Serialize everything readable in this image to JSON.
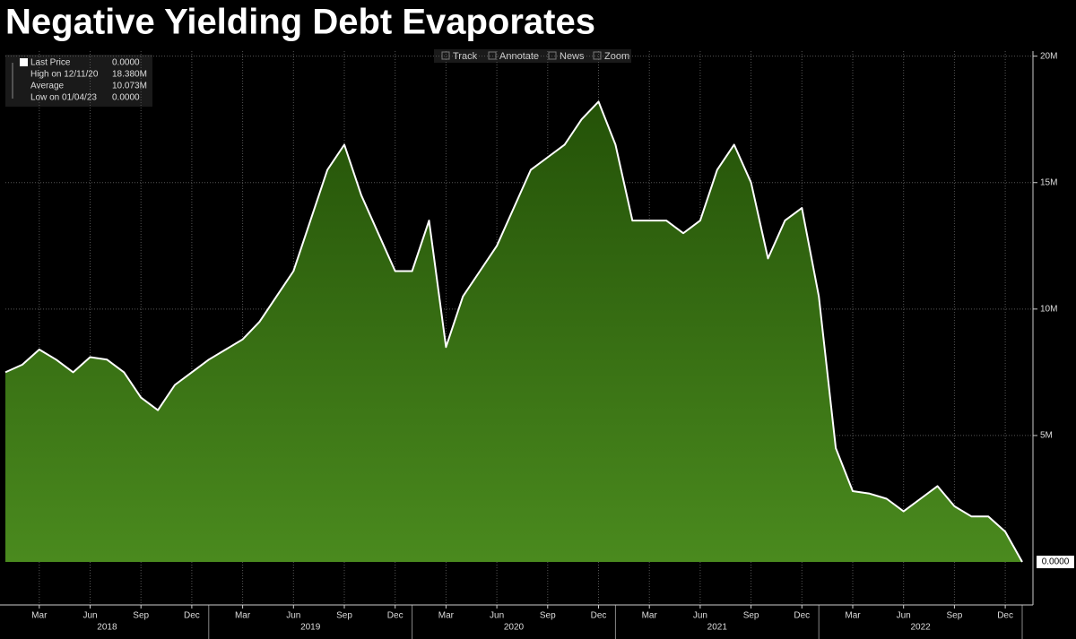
{
  "chart_data": {
    "type": "area",
    "title": "Negative Yielding Debt Evaporates",
    "toolbar": [
      "Track",
      "Annotate",
      "News",
      "Zoom"
    ],
    "legend": [
      {
        "label": "Last Price",
        "value": "0.0000"
      },
      {
        "label": "High on 12/11/20",
        "value": "18.380M"
      },
      {
        "label": "Average",
        "value": "10.073M"
      },
      {
        "label": "Low on 01/04/23",
        "value": "0.0000"
      }
    ],
    "x": [
      "2018-01",
      "2018-02",
      "2018-03",
      "2018-04",
      "2018-05",
      "2018-06",
      "2018-07",
      "2018-08",
      "2018-09",
      "2018-10",
      "2018-11",
      "2018-12",
      "2019-01",
      "2019-02",
      "2019-03",
      "2019-04",
      "2019-05",
      "2019-06",
      "2019-07",
      "2019-08",
      "2019-09",
      "2019-10",
      "2019-11",
      "2019-12",
      "2020-01",
      "2020-02",
      "2020-03",
      "2020-04",
      "2020-05",
      "2020-06",
      "2020-07",
      "2020-08",
      "2020-09",
      "2020-10",
      "2020-11",
      "2020-12",
      "2021-01",
      "2021-02",
      "2021-03",
      "2021-04",
      "2021-05",
      "2021-06",
      "2021-07",
      "2021-08",
      "2021-09",
      "2021-10",
      "2021-11",
      "2021-12",
      "2022-01",
      "2022-02",
      "2022-03",
      "2022-04",
      "2022-05",
      "2022-06",
      "2022-07",
      "2022-08",
      "2022-09",
      "2022-10",
      "2022-11",
      "2022-12",
      "2023-01"
    ],
    "series": [
      {
        "name": "Last Price",
        "color": "#ffffff",
        "fill_top": "#245208",
        "fill_bottom": "#4a8a1e",
        "values": [
          7.5,
          7.8,
          8.4,
          8.0,
          7.5,
          8.1,
          8.0,
          7.5,
          6.5,
          6.0,
          7.0,
          7.5,
          8.0,
          8.4,
          8.8,
          9.5,
          10.5,
          11.5,
          13.5,
          15.5,
          16.5,
          14.5,
          13.0,
          11.5,
          11.5,
          13.5,
          8.5,
          10.5,
          11.5,
          12.5,
          14.0,
          15.5,
          16.0,
          16.5,
          17.5,
          18.2,
          16.5,
          13.5,
          13.5,
          13.5,
          13.0,
          13.5,
          15.5,
          16.5,
          15.0,
          12.0,
          13.5,
          14.0,
          10.5,
          4.5,
          2.8,
          2.7,
          2.5,
          2.0,
          2.5,
          3.0,
          2.2,
          1.8,
          1.8,
          1.2,
          0
        ]
      }
    ],
    "last_value_label": "0.0000",
    "ylim": [
      -1.7,
      20.2
    ],
    "yticks": [
      {
        "value": 5,
        "label": "5M"
      },
      {
        "value": 10,
        "label": "10M"
      },
      {
        "value": 15,
        "label": "15M"
      },
      {
        "value": 20,
        "label": "20M"
      }
    ],
    "xticks": [
      {
        "value": "2018-03",
        "label": "Mar"
      },
      {
        "value": "2018-06",
        "label": "Jun"
      },
      {
        "value": "2018-09",
        "label": "Sep"
      },
      {
        "value": "2018-12",
        "label": "Dec"
      },
      {
        "value": "2019-03",
        "label": "Mar"
      },
      {
        "value": "2019-06",
        "label": "Jun"
      },
      {
        "value": "2019-09",
        "label": "Sep"
      },
      {
        "value": "2019-12",
        "label": "Dec"
      },
      {
        "value": "2020-03",
        "label": "Mar"
      },
      {
        "value": "2020-06",
        "label": "Jun"
      },
      {
        "value": "2020-09",
        "label": "Sep"
      },
      {
        "value": "2020-12",
        "label": "Dec"
      },
      {
        "value": "2021-03",
        "label": "Mar"
      },
      {
        "value": "2021-06",
        "label": "Jun"
      },
      {
        "value": "2021-09",
        "label": "Sep"
      },
      {
        "value": "2021-12",
        "label": "Dec"
      },
      {
        "value": "2022-03",
        "label": "Mar"
      },
      {
        "value": "2022-06",
        "label": "Jun"
      },
      {
        "value": "2022-09",
        "label": "Sep"
      },
      {
        "value": "2022-12",
        "label": "Dec"
      }
    ],
    "years": [
      "2018",
      "2019",
      "2020",
      "2021",
      "2022"
    ],
    "grid": true
  }
}
